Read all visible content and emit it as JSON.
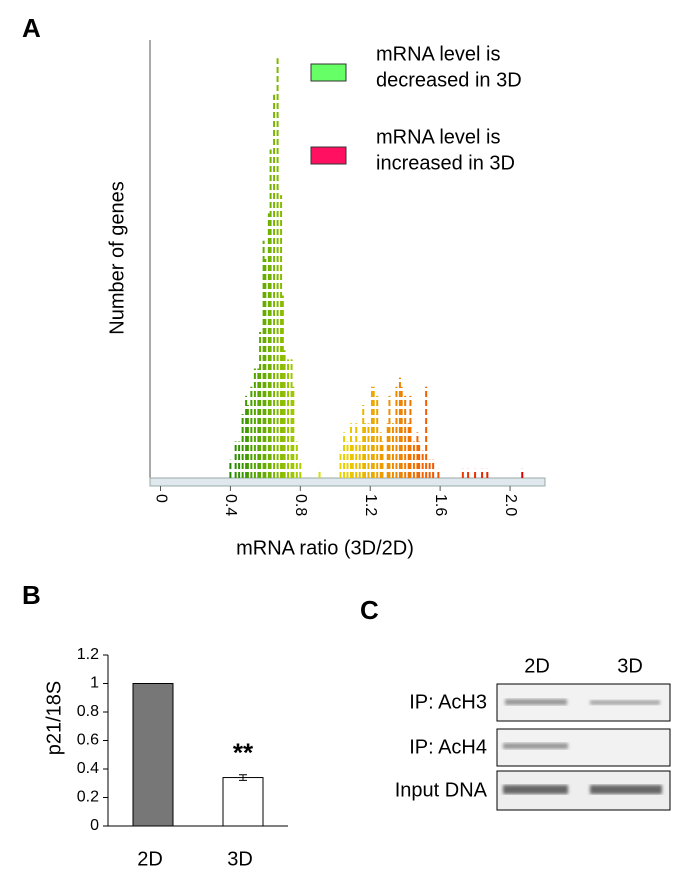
{
  "panel_letters": [
    "A",
    "B",
    "C"
  ],
  "chart_data": [
    {
      "type": "histogram-lines",
      "x_label": "mRNA ratio (3D/2D)",
      "y_label": "Number of genes",
      "x": [
        0.4,
        0.43,
        0.45,
        0.47,
        0.49,
        0.5,
        0.52,
        0.54,
        0.56,
        0.57,
        0.59,
        0.6,
        0.62,
        0.63,
        0.65,
        0.67,
        0.69,
        0.7,
        0.71,
        0.73,
        0.75,
        0.76,
        0.78,
        0.8,
        0.91,
        1.03,
        1.05,
        1.07,
        1.09,
        1.1,
        1.12,
        1.14,
        1.16,
        1.17,
        1.19,
        1.21,
        1.22,
        1.24,
        1.26,
        1.27,
        1.3,
        1.31,
        1.33,
        1.35,
        1.37,
        1.38,
        1.4,
        1.42,
        1.43,
        1.45,
        1.47,
        1.48,
        1.5,
        1.52,
        1.54,
        1.56,
        1.59,
        1.73,
        1.76,
        1.8,
        1.84,
        1.87,
        2.07
      ],
      "values": [
        2,
        4,
        4,
        7,
        9,
        8,
        10,
        12,
        12,
        16,
        26,
        24,
        29,
        36,
        42,
        46,
        31,
        20,
        14,
        13,
        13,
        10,
        4,
        2,
        1,
        3,
        5,
        4,
        6,
        4,
        6,
        4,
        8,
        6,
        6,
        10,
        10,
        9,
        5,
        4,
        6,
        9,
        6,
        10,
        11,
        10,
        9,
        6,
        9,
        4,
        5,
        4,
        3,
        10,
        2,
        2,
        1,
        1,
        1,
        1,
        1,
        1,
        1
      ],
      "color_scale": [
        "#1f8a00",
        "#e8e800",
        "#f06000",
        "#e00000"
      ],
      "xlim": [
        -0.06,
        2.2
      ],
      "ylim": [
        0,
        48
      ],
      "xticks": [
        0,
        0.4,
        0.8,
        1.2,
        1.6,
        {
          "value": 2,
          "label": "2.0"
        }
      ],
      "legend": [
        {
          "label": [
            "mRNA level is",
            "decreased in 3D"
          ],
          "color": "#66ff66"
        },
        {
          "label": [
            "mRNA level is",
            "increased  in 3D"
          ],
          "color": "#ff1060"
        }
      ]
    },
    {
      "type": "bar",
      "y_label": "p21/18S",
      "categories": [
        "2D",
        "3D"
      ],
      "values": [
        1,
        0.34
      ],
      "errors": [
        null,
        0.02
      ],
      "colors": [
        "#777777",
        "#ffffff"
      ],
      "annotation": "**",
      "ylim": [
        0,
        1.2
      ],
      "yticks": [
        0,
        0.2,
        0.4,
        0.6,
        0.8,
        1,
        1.2
      ]
    }
  ],
  "panel_c": {
    "columns": [
      "2D",
      "3D"
    ],
    "rows": [
      "IP: AcH3",
      "IP: AcH4",
      "Input DNA"
    ]
  }
}
